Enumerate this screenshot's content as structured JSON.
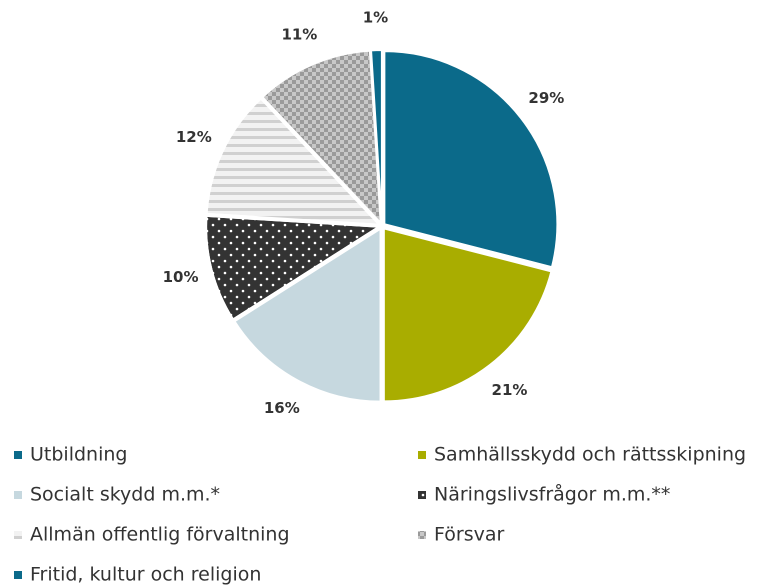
{
  "chart_data": {
    "type": "pie",
    "categories": [
      "Utbildning",
      "Samhällsskydd och rättsskipning",
      "Socialt skydd m.m.*",
      "Näringslivsfrågor m.m.**",
      "Allmän offentlig förvaltning",
      "Försvar",
      "Fritid, kultur och religion"
    ],
    "values": [
      29,
      21,
      16,
      10,
      12,
      11,
      1
    ],
    "value_labels": [
      "29%",
      "21%",
      "16%",
      "10%",
      "12%",
      "11%",
      "1%"
    ],
    "colors": [
      "#0b6a8a",
      "#a9ad00",
      "#c6d8df",
      "#333333",
      "#f2f2f2",
      "#9a9a9a",
      "#0b6a8a"
    ],
    "patterns": [
      "solid",
      "solid",
      "solid",
      "dots",
      "stripes",
      "crosshatch",
      "solid"
    ],
    "legend": "bottom"
  }
}
